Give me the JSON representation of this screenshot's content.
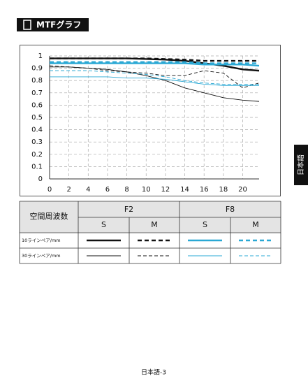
{
  "header": {
    "title": "MTFグラフ"
  },
  "chart_data": {
    "type": "line",
    "x": [
      0,
      2,
      4,
      6,
      8,
      10,
      12,
      14,
      16,
      18,
      20,
      21.7
    ],
    "xlim": [
      0,
      21.7
    ],
    "xticks": [
      0,
      2,
      4,
      6,
      8,
      10,
      12,
      14,
      16,
      18,
      20
    ],
    "ylim": [
      0,
      1
    ],
    "yticks": [
      0,
      0.1,
      0.2,
      0.3,
      0.4,
      0.5,
      0.6,
      0.7,
      0.8,
      0.9,
      1
    ],
    "grid": true,
    "series": [
      {
        "color": "#111111",
        "line_style": "solid",
        "weight": "thick",
        "values": [
          0.98,
          0.98,
          0.98,
          0.98,
          0.98,
          0.975,
          0.97,
          0.96,
          0.94,
          0.92,
          0.89,
          0.88
        ]
      },
      {
        "color": "#111111",
        "line_style": "dashed",
        "weight": "thick",
        "values": [
          0.98,
          0.98,
          0.98,
          0.98,
          0.98,
          0.98,
          0.975,
          0.97,
          0.96,
          0.96,
          0.96,
          0.96
        ]
      },
      {
        "color": "#2aa8d4",
        "line_style": "solid",
        "weight": "thick",
        "values": [
          0.94,
          0.94,
          0.94,
          0.94,
          0.94,
          0.94,
          0.94,
          0.94,
          0.93,
          0.93,
          0.93,
          0.92
        ]
      },
      {
        "color": "#2aa8d4",
        "line_style": "dashed",
        "weight": "thick",
        "values": [
          0.95,
          0.95,
          0.95,
          0.95,
          0.95,
          0.95,
          0.95,
          0.95,
          0.94,
          0.94,
          0.94,
          0.94
        ]
      },
      {
        "color": "#111111",
        "line_style": "solid",
        "weight": "thin",
        "values": [
          0.91,
          0.91,
          0.9,
          0.89,
          0.87,
          0.84,
          0.8,
          0.74,
          0.7,
          0.66,
          0.64,
          0.63
        ]
      },
      {
        "color": "#111111",
        "line_style": "dashed",
        "weight": "thin",
        "values": [
          0.92,
          0.91,
          0.9,
          0.88,
          0.87,
          0.86,
          0.84,
          0.84,
          0.88,
          0.86,
          0.74,
          0.78
        ]
      },
      {
        "color": "#2aa8d4",
        "line_style": "solid",
        "weight": "thin",
        "values": [
          0.83,
          0.83,
          0.83,
          0.83,
          0.82,
          0.82,
          0.81,
          0.79,
          0.77,
          0.76,
          0.76,
          0.76
        ]
      },
      {
        "color": "#2aa8d4",
        "line_style": "dashed",
        "weight": "thin",
        "values": [
          0.88,
          0.88,
          0.88,
          0.87,
          0.86,
          0.85,
          0.83,
          0.8,
          0.78,
          0.77,
          0.77,
          0.77
        ]
      }
    ]
  },
  "table": {
    "corner": "空間周波数",
    "apertures": [
      "F2",
      "F8"
    ],
    "types": [
      "S",
      "M",
      "S",
      "M"
    ],
    "rows": [
      "10ラインペア/mm",
      "30ラインペア/mm"
    ]
  },
  "side_tab": "日本語",
  "footer": "日本語-3"
}
